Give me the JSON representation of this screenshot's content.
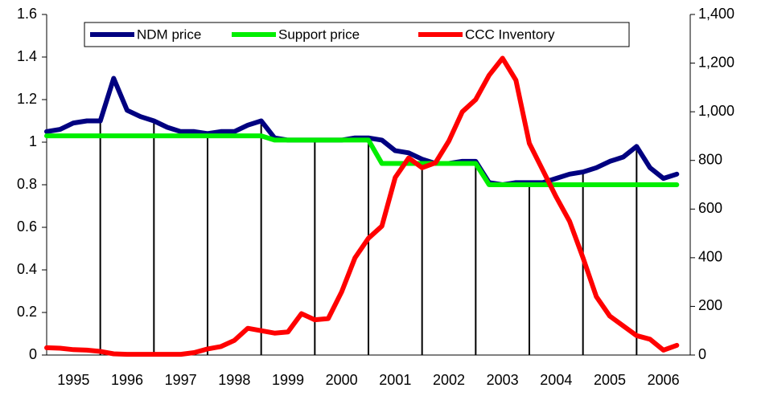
{
  "chart_data": {
    "type": "line",
    "x": [
      1995,
      1995.25,
      1995.5,
      1995.75,
      1996,
      1996.25,
      1996.5,
      1996.75,
      1997,
      1997.25,
      1997.5,
      1997.75,
      1998,
      1998.25,
      1998.5,
      1998.75,
      1999,
      1999.25,
      1999.5,
      1999.75,
      2000,
      2000.25,
      2000.5,
      2000.75,
      2001,
      2001.25,
      2001.5,
      2001.75,
      2002,
      2002.25,
      2002.5,
      2002.75,
      2003,
      2003.25,
      2003.5,
      2003.75,
      2004,
      2004.25,
      2004.5,
      2004.75,
      2005,
      2005.25,
      2005.5,
      2005.75,
      2006,
      2006.25,
      2006.5,
      2006.75
    ],
    "series": [
      {
        "name": "NDM price",
        "color": "#000080",
        "values": [
          1.05,
          1.06,
          1.09,
          1.1,
          1.1,
          1.3,
          1.15,
          1.12,
          1.1,
          1.07,
          1.05,
          1.05,
          1.04,
          1.05,
          1.05,
          1.08,
          1.1,
          1.02,
          1.01,
          1.01,
          1.01,
          1.01,
          1.01,
          1.02,
          1.02,
          1.01,
          0.96,
          0.95,
          0.92,
          0.9,
          0.9,
          0.91,
          0.91,
          0.81,
          0.8,
          0.81,
          0.81,
          0.81,
          0.83,
          0.85,
          0.86,
          0.88,
          0.91,
          0.93,
          0.98,
          0.88,
          0.83,
          0.85
        ]
      },
      {
        "name": "Support price",
        "color": "#00ee00",
        "values": [
          1.03,
          1.03,
          1.03,
          1.03,
          1.03,
          1.03,
          1.03,
          1.03,
          1.03,
          1.03,
          1.03,
          1.03,
          1.03,
          1.03,
          1.03,
          1.03,
          1.03,
          1.01,
          1.01,
          1.01,
          1.01,
          1.01,
          1.01,
          1.01,
          1.01,
          0.9,
          0.9,
          0.9,
          0.9,
          0.9,
          0.9,
          0.9,
          0.9,
          0.8,
          0.8,
          0.8,
          0.8,
          0.8,
          0.8,
          0.8,
          0.8,
          0.8,
          0.8,
          0.8,
          0.8,
          0.8,
          0.8,
          0.8
        ]
      },
      {
        "name": "CCC Inventory",
        "color": "#ff0000",
        "axis": "y2",
        "values": [
          30,
          28,
          22,
          20,
          15,
          5,
          3,
          3,
          3,
          3,
          3,
          10,
          25,
          35,
          60,
          110,
          100,
          90,
          95,
          170,
          145,
          150,
          260,
          400,
          480,
          530,
          730,
          810,
          770,
          790,
          880,
          1000,
          1050,
          1150,
          1220,
          1130,
          870,
          760,
          650,
          550,
          400,
          240,
          160,
          120,
          80,
          65,
          20,
          40
        ]
      }
    ],
    "xlim": [
      1995,
      2007
    ],
    "xticks": [
      {
        "value": 1995.5,
        "label": "1995"
      },
      {
        "value": 1996.5,
        "label": "1996"
      },
      {
        "value": 1997.5,
        "label": "1997"
      },
      {
        "value": 1998.5,
        "label": "1998"
      },
      {
        "value": 1999.5,
        "label": "1999"
      },
      {
        "value": 2000.5,
        "label": "2000"
      },
      {
        "value": 2001.5,
        "label": "2001"
      },
      {
        "value": 2002.5,
        "label": "2002"
      },
      {
        "value": 2003.5,
        "label": "2003"
      },
      {
        "value": 2004.5,
        "label": "2004"
      },
      {
        "value": 2005.5,
        "label": "2005"
      },
      {
        "value": 2006.5,
        "label": "2006"
      }
    ],
    "ylim": [
      0,
      1.6
    ],
    "yticks": [
      0,
      0.2,
      0.4,
      0.6,
      0.8,
      1,
      1.2,
      1.4,
      1.6
    ],
    "y2lim": [
      0,
      1400
    ],
    "y2ticks": [
      0,
      200,
      400,
      600,
      800,
      {
        "value": 1000,
        "label": "1,000"
      },
      {
        "value": 1200,
        "label": "1,200"
      },
      {
        "value": 1400,
        "label": "1,400"
      }
    ],
    "grid": false,
    "legend": "top"
  }
}
